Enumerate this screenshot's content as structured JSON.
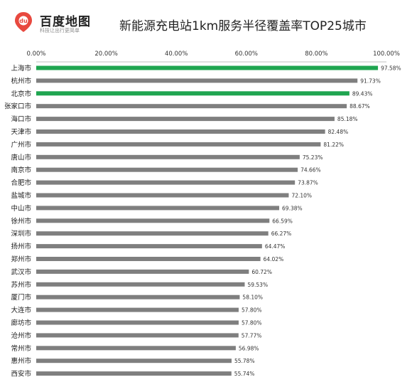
{
  "logo": {
    "name": "百度地图",
    "slogan": "科技让出行更简单",
    "colors": {
      "pin": "#e8493f"
    }
  },
  "colors": {
    "highlight": "#1fa550",
    "default": "#7f7f7f",
    "axis_line": "#bfbfbf"
  },
  "chart_data": {
    "type": "bar",
    "orientation": "horizontal",
    "title": "新能源充电站1km服务半径覆盖率TOP25城市",
    "xlabel": "",
    "ylabel": "",
    "xlim": [
      0,
      100
    ],
    "ticks": [
      "0.00%",
      "20.00%",
      "40.00%",
      "60.00%",
      "80.00%",
      "100.00%"
    ],
    "grid": false,
    "legend": "none",
    "highlighted": [
      "上海市",
      "北京市"
    ],
    "categories": [
      "上海市",
      "杭州市",
      "北京市",
      "张家口市",
      "海口市",
      "天津市",
      "广州市",
      "唐山市",
      "南京市",
      "合肥市",
      "盐城市",
      "中山市",
      "徐州市",
      "深圳市",
      "扬州市",
      "郑州市",
      "武汉市",
      "苏州市",
      "厦门市",
      "大连市",
      "廊坊市",
      "沧州市",
      "常州市",
      "惠州市",
      "西安市"
    ],
    "values": [
      97.58,
      91.73,
      89.43,
      88.67,
      85.18,
      82.48,
      81.22,
      75.23,
      74.66,
      73.87,
      72.1,
      69.38,
      66.59,
      66.27,
      64.47,
      64.02,
      60.72,
      59.53,
      58.1,
      57.8,
      57.8,
      57.77,
      56.98,
      55.78,
      55.74
    ],
    "labels": [
      "97.58%",
      "91.73%",
      "89.43%",
      "88.67%",
      "85.18%",
      "82.48%",
      "81.22%",
      "75.23%",
      "74.66%",
      "73.87%",
      "72.10%",
      "69.38%",
      "66.59%",
      "66.27%",
      "64.47%",
      "64.02%",
      "60.72%",
      "59.53%",
      "58.10%",
      "57.80%",
      "57.80%",
      "57.77%",
      "56.98%",
      "55.78%",
      "55.74%"
    ]
  }
}
